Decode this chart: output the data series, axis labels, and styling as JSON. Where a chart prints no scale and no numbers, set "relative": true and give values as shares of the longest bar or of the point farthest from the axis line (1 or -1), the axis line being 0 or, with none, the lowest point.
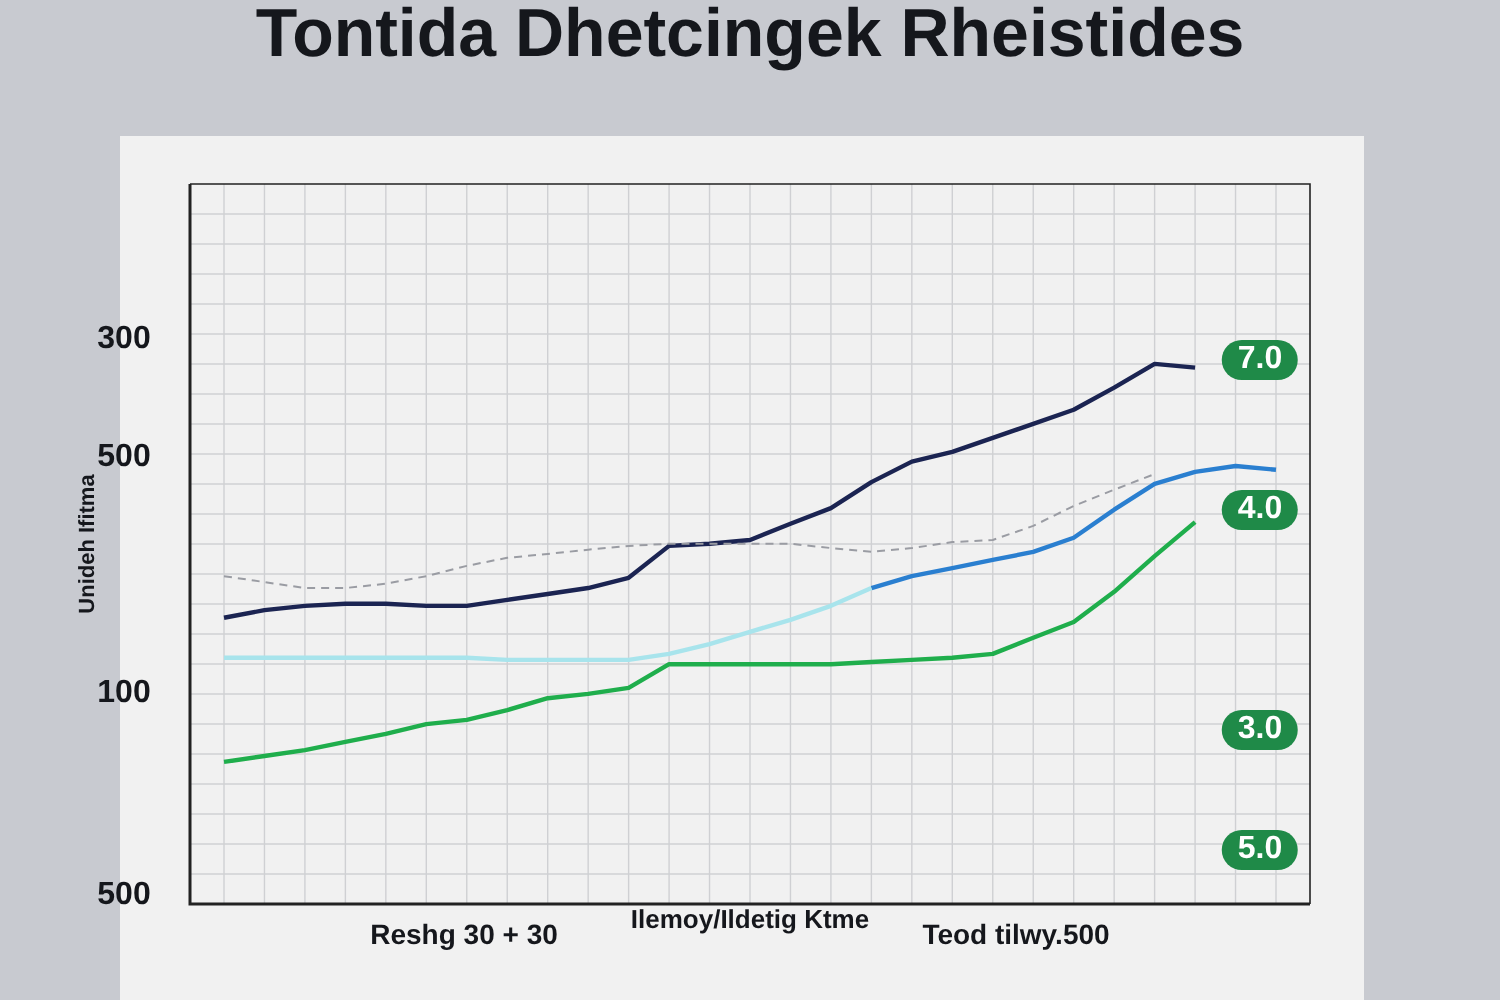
{
  "chart_data": {
    "type": "line",
    "relative": true,
    "title": "Tontida Dhetcingek Rheistides",
    "xlabel": "Ilemoy/Ildetig Ktme",
    "ylabel": "Unideh Ifitma",
    "grid": true,
    "legend": false,
    "categories": [
      null,
      null,
      null,
      null,
      null,
      null,
      null,
      null,
      null,
      null,
      null,
      null,
      null,
      null,
      null,
      null,
      null,
      null,
      null,
      null,
      null,
      null,
      null,
      null,
      null,
      null,
      null
    ],
    "series": [
      {
        "color": "#9a9ca3",
        "line_style": "dashed",
        "values": [
          0.607,
          0.596,
          0.585,
          0.585,
          0.593,
          0.607,
          0.626,
          0.641,
          0.648,
          0.656,
          0.663,
          0.667,
          0.667,
          0.667,
          0.667,
          0.659,
          0.652,
          0.659,
          0.67,
          0.674,
          0.7,
          0.737,
          0.767,
          0.796,
          null,
          null,
          null
        ]
      },
      {
        "color": "#1b2452",
        "values": [
          0.53,
          0.544,
          0.552,
          0.556,
          0.556,
          0.552,
          0.552,
          0.563,
          0.574,
          0.585,
          0.604,
          0.663,
          0.667,
          0.674,
          0.704,
          0.733,
          0.781,
          0.819,
          0.837,
          0.863,
          0.889,
          0.915,
          0.956,
          1,
          0.993,
          null,
          null
        ]
      },
      {
        "color": "#a8e4ec",
        "values": [
          0.456,
          0.456,
          0.456,
          0.456,
          0.456,
          0.456,
          0.456,
          0.452,
          0.452,
          0.452,
          0.452,
          0.463,
          0.481,
          0.504,
          0.526,
          0.552,
          0.585,
          null,
          null,
          null,
          null,
          null,
          null,
          null,
          null,
          null,
          null
        ]
      },
      {
        "color": "#2a7fd0",
        "values": [
          null,
          null,
          null,
          null,
          null,
          null,
          null,
          null,
          null,
          null,
          null,
          null,
          null,
          null,
          null,
          null,
          0.585,
          0.607,
          0.622,
          0.637,
          0.652,
          0.678,
          0.73,
          0.778,
          0.8,
          0.811,
          0.804
        ]
      },
      {
        "color": "#1fae4c",
        "values": [
          0.263,
          0.274,
          0.285,
          0.3,
          0.315,
          0.333,
          0.341,
          0.359,
          0.381,
          0.389,
          0.4,
          0.444,
          0.444,
          0.444,
          0.444,
          0.444,
          0.448,
          0.452,
          0.456,
          0.463,
          0.493,
          0.522,
          0.578,
          0.644,
          0.707,
          null,
          null
        ]
      }
    ],
    "annotations": [
      "300",
      "500",
      "100",
      "500",
      "7.0",
      "4.0",
      "3.0",
      "5.0",
      "Reshg 30 + 30",
      "Teod tilwy.500"
    ]
  }
}
